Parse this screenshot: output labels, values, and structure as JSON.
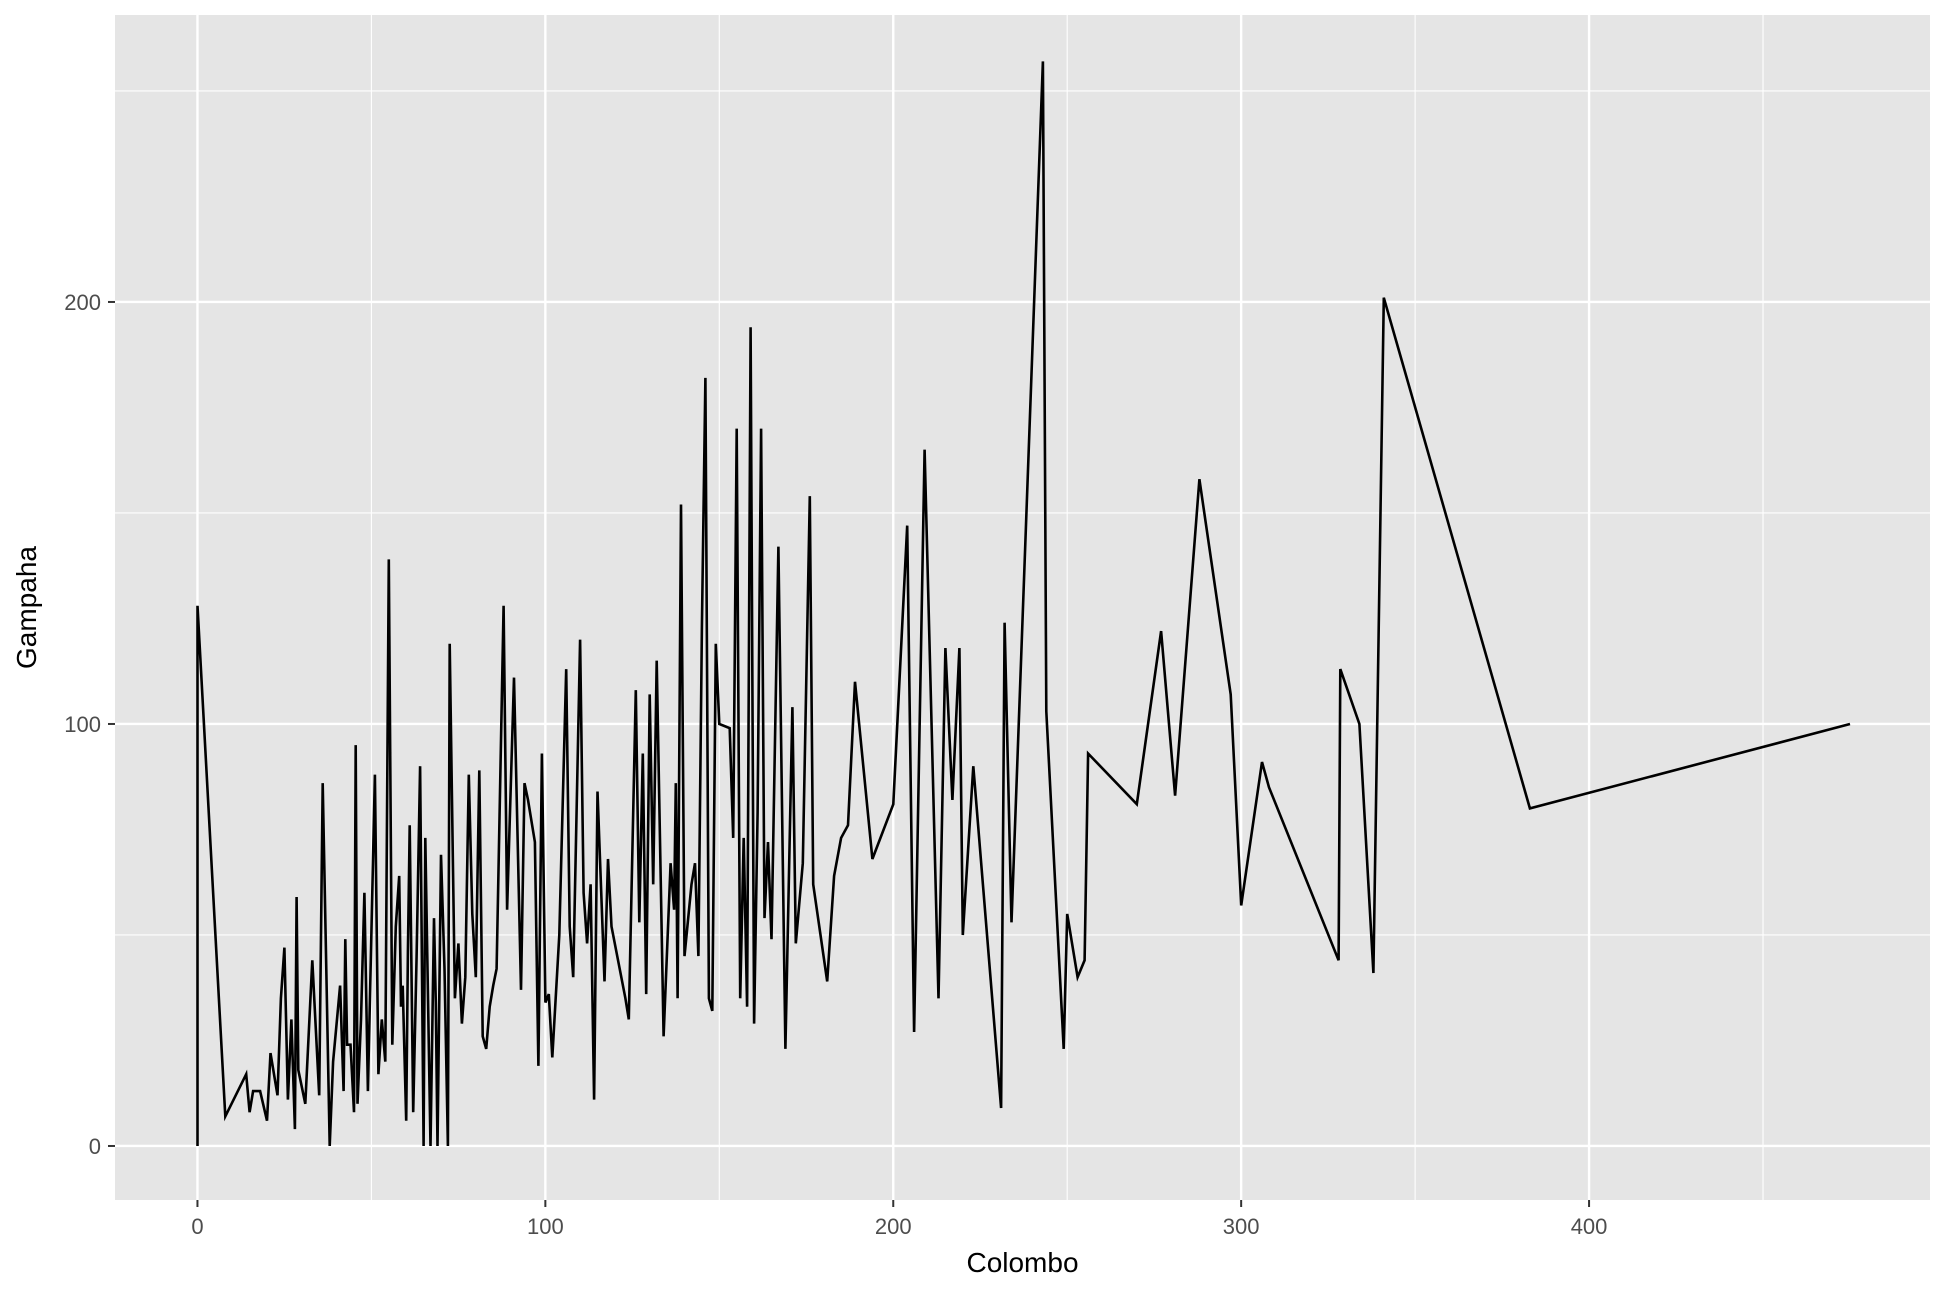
{
  "chart_data": {
    "type": "line",
    "title": "",
    "xlabel": "Colombo",
    "ylabel": "Gampaha",
    "xlim": [
      -23.7,
      498
    ],
    "ylim": [
      -12.8,
      268
    ],
    "x_ticks": [
      0,
      100,
      200,
      300,
      400
    ],
    "y_ticks": [
      0,
      100,
      200
    ],
    "x_tick_labels": [
      "0",
      "100",
      "200",
      "300",
      "400"
    ],
    "y_tick_labels": [
      "0",
      "100",
      "200"
    ],
    "grid": true,
    "legend": "none",
    "colors": {
      "panel": "#e5e5e5",
      "grid": "#ffffff",
      "line": "#000000",
      "tick_text": "#4d4d4d"
    },
    "series": [
      {
        "points": [
          [
            0,
            0
          ],
          [
            0,
            128
          ],
          [
            8,
            7
          ],
          [
            14,
            17
          ],
          [
            15,
            8
          ],
          [
            16,
            13
          ],
          [
            18,
            13
          ],
          [
            20,
            6
          ],
          [
            21,
            22
          ],
          [
            23,
            12
          ],
          [
            24,
            35
          ],
          [
            25,
            47
          ],
          [
            26,
            11
          ],
          [
            27,
            30
          ],
          [
            28,
            4
          ],
          [
            28.5,
            59
          ],
          [
            29,
            18
          ],
          [
            31,
            10
          ],
          [
            33,
            44
          ],
          [
            35,
            12
          ],
          [
            36,
            86
          ],
          [
            38,
            0
          ],
          [
            39,
            20
          ],
          [
            41,
            38
          ],
          [
            42,
            13
          ],
          [
            42.5,
            49
          ],
          [
            43,
            24
          ],
          [
            44,
            24
          ],
          [
            45,
            8
          ],
          [
            45.5,
            95
          ],
          [
            46,
            10
          ],
          [
            47,
            30
          ],
          [
            48,
            60
          ],
          [
            49,
            13
          ],
          [
            51,
            88
          ],
          [
            52,
            17
          ],
          [
            53,
            30
          ],
          [
            54,
            20
          ],
          [
            55,
            139
          ],
          [
            56,
            24
          ],
          [
            57,
            52
          ],
          [
            58,
            64
          ],
          [
            58.5,
            33
          ],
          [
            59,
            38
          ],
          [
            60,
            6
          ],
          [
            60.5,
            46
          ],
          [
            61,
            76
          ],
          [
            62,
            8
          ],
          [
            63,
            45
          ],
          [
            64,
            90
          ],
          [
            65,
            0
          ],
          [
            65.5,
            73
          ],
          [
            67,
            0
          ],
          [
            68,
            54
          ],
          [
            68.5,
            34
          ],
          [
            69,
            0
          ],
          [
            70,
            69
          ],
          [
            71,
            42
          ],
          [
            72,
            0
          ],
          [
            72.5,
            119
          ],
          [
            74,
            35
          ],
          [
            75,
            48
          ],
          [
            76,
            29
          ],
          [
            77,
            40
          ],
          [
            78,
            88
          ],
          [
            79,
            55
          ],
          [
            80,
            40
          ],
          [
            81,
            89
          ],
          [
            82,
            26
          ],
          [
            83,
            23
          ],
          [
            84,
            33
          ],
          [
            85,
            38
          ],
          [
            86,
            42
          ],
          [
            88,
            128
          ],
          [
            89,
            56
          ],
          [
            91,
            111
          ],
          [
            93,
            37
          ],
          [
            94,
            86
          ],
          [
            95,
            82
          ],
          [
            97,
            72
          ],
          [
            98,
            19
          ],
          [
            99,
            93
          ],
          [
            100,
            34
          ],
          [
            101,
            36
          ],
          [
            102,
            21
          ],
          [
            104,
            50
          ],
          [
            106,
            113
          ],
          [
            107,
            52
          ],
          [
            108,
            40
          ],
          [
            110,
            120
          ],
          [
            111,
            60
          ],
          [
            112,
            48
          ],
          [
            113,
            62
          ],
          [
            114,
            11
          ],
          [
            115,
            84
          ],
          [
            117,
            39
          ],
          [
            118,
            68
          ],
          [
            119,
            52
          ],
          [
            123,
            35
          ],
          [
            124,
            30
          ],
          [
            126,
            108
          ],
          [
            127,
            53
          ],
          [
            128,
            93
          ],
          [
            129,
            36
          ],
          [
            130,
            107
          ],
          [
            131,
            62
          ],
          [
            132,
            115
          ],
          [
            134,
            26
          ],
          [
            136,
            67
          ],
          [
            137,
            56
          ],
          [
            137.5,
            86
          ],
          [
            138,
            35
          ],
          [
            139,
            152
          ],
          [
            140,
            45
          ],
          [
            142,
            62
          ],
          [
            143,
            67
          ],
          [
            144,
            45
          ],
          [
            145,
            123
          ],
          [
            146,
            182
          ],
          [
            147,
            35
          ],
          [
            148,
            32
          ],
          [
            149,
            119
          ],
          [
            150,
            100
          ],
          [
            153,
            99
          ],
          [
            154,
            73
          ],
          [
            155,
            170
          ],
          [
            156,
            35
          ],
          [
            157,
            73
          ],
          [
            158,
            33
          ],
          [
            159,
            194
          ],
          [
            160,
            29
          ],
          [
            161,
            79
          ],
          [
            162,
            170
          ],
          [
            163,
            54
          ],
          [
            164,
            72
          ],
          [
            165,
            49
          ],
          [
            167,
            142
          ],
          [
            169,
            23
          ],
          [
            171,
            104
          ],
          [
            172,
            48
          ],
          [
            174,
            67
          ],
          [
            176,
            154
          ],
          [
            177,
            62
          ],
          [
            181,
            39
          ],
          [
            183,
            64
          ],
          [
            185,
            73
          ],
          [
            187,
            76
          ],
          [
            189,
            110
          ],
          [
            194,
            68
          ],
          [
            200,
            81
          ],
          [
            204,
            147
          ],
          [
            206,
            27
          ],
          [
            209,
            165
          ],
          [
            213,
            35
          ],
          [
            215,
            118
          ],
          [
            217,
            82
          ],
          [
            219,
            118
          ],
          [
            220,
            50
          ],
          [
            223,
            90
          ],
          [
            231,
            9
          ],
          [
            232,
            124
          ],
          [
            234,
            53
          ],
          [
            243,
            257
          ],
          [
            244,
            103
          ],
          [
            249,
            23
          ],
          [
            250,
            55
          ],
          [
            253,
            40
          ],
          [
            255,
            44
          ],
          [
            256,
            93
          ],
          [
            270,
            81
          ],
          [
            277,
            122
          ],
          [
            281,
            83
          ],
          [
            288,
            158
          ],
          [
            297,
            107
          ],
          [
            300,
            57
          ],
          [
            306,
            91
          ],
          [
            308,
            85
          ],
          [
            328,
            44
          ],
          [
            328.5,
            113
          ],
          [
            334,
            100
          ],
          [
            338,
            41
          ],
          [
            341,
            201
          ],
          [
            383,
            80
          ],
          [
            475,
            100
          ]
        ]
      }
    ]
  }
}
